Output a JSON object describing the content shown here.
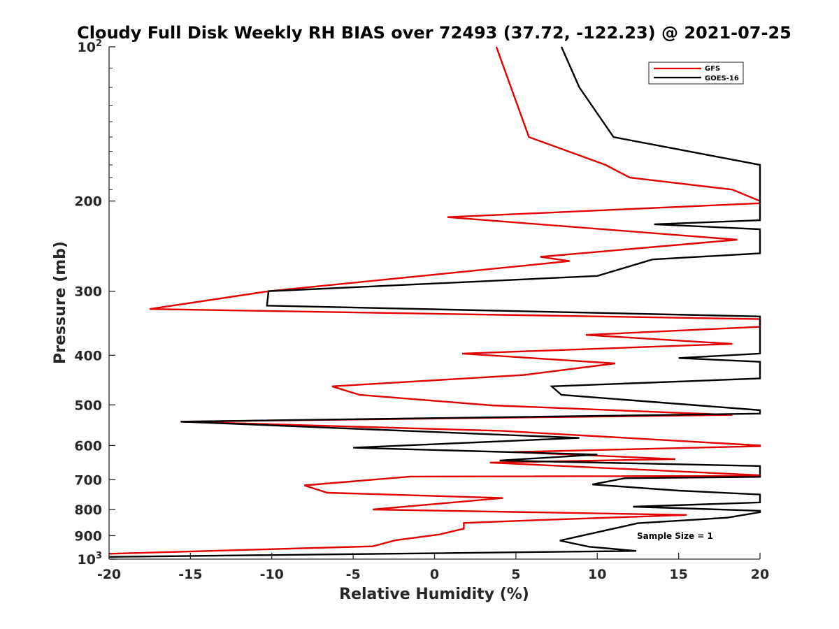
{
  "chart_data": {
    "type": "line",
    "title": "Cloudy Full Disk Weekly RH BIAS over 72493 (37.72, -122.23) @ 2021-07-25",
    "xlabel": "Relative Humidity (%)",
    "ylabel": "Pressure (mb)",
    "xlim": [
      -20,
      20
    ],
    "ylim": [
      100,
      1000
    ],
    "y_scale": "log",
    "y_reversed": true,
    "grid": false,
    "legend_position": "top-right",
    "x_ticks": [
      "-20",
      "-15",
      "-10",
      "-5",
      "0",
      "5",
      "10",
      "15",
      "20"
    ],
    "y_ticks": [
      {
        "value": 100,
        "label": "10",
        "sup": "2"
      },
      {
        "value": 200,
        "label": "200"
      },
      {
        "value": 300,
        "label": "300"
      },
      {
        "value": 400,
        "label": "400"
      },
      {
        "value": 500,
        "label": "500"
      },
      {
        "value": 600,
        "label": "600"
      },
      {
        "value": 700,
        "label": "700"
      },
      {
        "value": 800,
        "label": "800"
      },
      {
        "value": 900,
        "label": "900"
      },
      {
        "value": 1000,
        "label": "10",
        "sup": "3"
      }
    ],
    "series": [
      {
        "name": "GFS",
        "color": "#e00000",
        "points": [
          [
            3.8,
            100
          ],
          [
            5.8,
            150
          ],
          [
            10.5,
            170
          ],
          [
            12,
            180
          ],
          [
            18.3,
            190
          ],
          [
            20,
            200
          ],
          [
            20,
            202
          ],
          [
            0.8,
            215
          ],
          [
            18.6,
            238
          ],
          [
            6.5,
            257
          ],
          [
            8.3,
            262
          ],
          [
            -10.2,
            300
          ],
          [
            -17.5,
            325
          ],
          [
            20,
            340
          ],
          [
            20,
            352
          ],
          [
            9.3,
            365
          ],
          [
            18.3,
            380
          ],
          [
            1.7,
            397
          ],
          [
            11.1,
            415
          ],
          [
            5.5,
            437
          ],
          [
            -6.3,
            460
          ],
          [
            -4.6,
            478
          ],
          [
            3.5,
            501
          ],
          [
            18.3,
            523
          ],
          [
            -15.6,
            539
          ],
          [
            4.2,
            562
          ],
          [
            20,
            600
          ],
          [
            20,
            602
          ],
          [
            4.8,
            618
          ],
          [
            14.8,
            638
          ],
          [
            3.4,
            648
          ],
          [
            20,
            686
          ],
          [
            20,
            688
          ],
          [
            -1.5,
            690
          ],
          [
            -8.0,
            718
          ],
          [
            -6.6,
            742
          ],
          [
            4.2,
            760
          ],
          [
            -3.8,
            800
          ],
          [
            15.5,
            820
          ],
          [
            5.5,
            841
          ],
          [
            1.8,
            850
          ],
          [
            1.8,
            872
          ],
          [
            0.3,
            895
          ],
          [
            -2.4,
            919
          ],
          [
            -3.8,
            944
          ],
          [
            -20,
            976
          ]
        ]
      },
      {
        "name": "GOES-16",
        "color": "#000000",
        "points": [
          [
            7.8,
            100
          ],
          [
            8.9,
            120
          ],
          [
            11.0,
            150
          ],
          [
            20,
            170
          ],
          [
            20,
            218
          ],
          [
            13.5,
            222
          ],
          [
            20,
            227
          ],
          [
            20,
            253
          ],
          [
            13.4,
            260
          ],
          [
            10,
            280
          ],
          [
            -10.2,
            300
          ],
          [
            -10.3,
            320
          ],
          [
            20,
            336
          ],
          [
            20,
            397
          ],
          [
            15.0,
            405
          ],
          [
            20,
            412
          ],
          [
            20,
            444
          ],
          [
            7.2,
            460
          ],
          [
            7.8,
            478
          ],
          [
            20,
            512
          ],
          [
            20,
            520
          ],
          [
            -15.6,
            539
          ],
          [
            8.9,
            580
          ],
          [
            -5.0,
            606
          ],
          [
            10.0,
            625
          ],
          [
            4.0,
            642
          ],
          [
            20,
            658
          ],
          [
            20,
            691
          ],
          [
            11.7,
            695
          ],
          [
            9.7,
            715
          ],
          [
            15.0,
            735
          ],
          [
            20,
            748
          ],
          [
            20,
            775
          ],
          [
            12.2,
            790
          ],
          [
            20,
            805
          ],
          [
            20,
            810
          ],
          [
            18.0,
            830
          ],
          [
            12.5,
            851
          ],
          [
            7.7,
            920
          ],
          [
            9.5,
            946
          ],
          [
            12.4,
            964
          ],
          [
            -20,
            990
          ]
        ]
      }
    ],
    "annotation": "Sample Size = 1"
  }
}
